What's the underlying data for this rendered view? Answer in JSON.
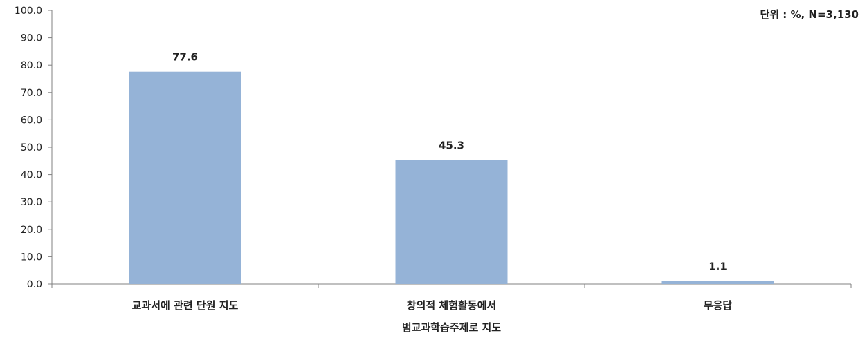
{
  "chart_data": {
    "type": "bar",
    "unit_note": "단위 : %, N=3,130",
    "categories": [
      [
        "교과서에 관련 단원 지도"
      ],
      [
        "창의적 체험활동에서",
        "범교과학습주제로 지도"
      ],
      [
        "무응답"
      ]
    ],
    "values": [
      77.6,
      45.3,
      1.1
    ],
    "value_labels": [
      "77.6",
      "45.3",
      "1.1"
    ],
    "ylim": [
      0,
      100
    ],
    "y_ticks": [
      "0.0",
      "10.0",
      "20.0",
      "30.0",
      "40.0",
      "50.0",
      "60.0",
      "70.0",
      "80.0",
      "90.0",
      "100.0"
    ],
    "grid": false,
    "bar_color": "#95B3D7",
    "axis_color": "#808080"
  }
}
